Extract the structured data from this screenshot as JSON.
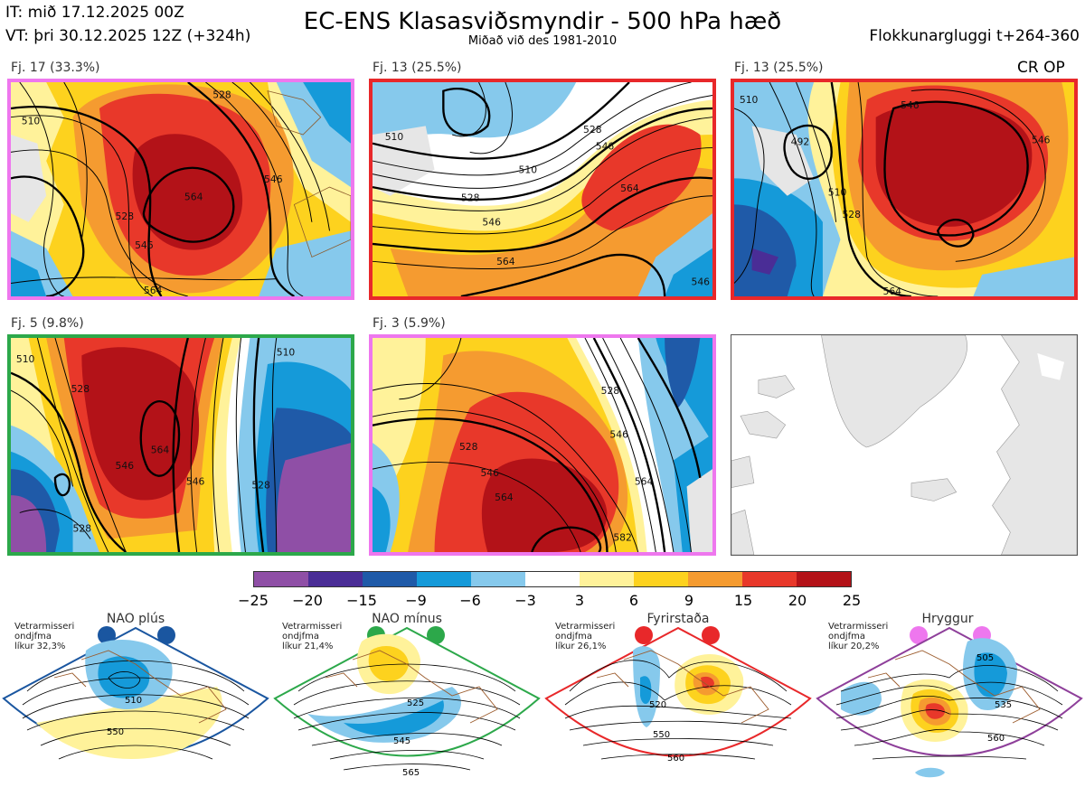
{
  "header": {
    "init_time": "IT: mið 17.12.2025 00Z",
    "valid_time": "VT: þri 30.12.2025 12Z  (+324h)",
    "title": "EC-ENS Klasasviðsmyndir - 500 hPa hæð",
    "subtitle": "Miðað við des 1981-2010",
    "window": "Flokkunargluggi t+264-360"
  },
  "panels": [
    {
      "label": "Fj. 17 (33.3%)",
      "frame_color": "#ee77ee"
    },
    {
      "label": "Fj. 13 (25.5%)",
      "frame_color": "#e8282a"
    },
    {
      "label": "Fj. 13 (25.5%)",
      "frame_color": "#e8282a",
      "tag": "CR OP"
    },
    {
      "label": "Fj. 5 (9.8%)",
      "frame_color": "#2ca84a"
    },
    {
      "label": "Fj. 3 (5.9%)",
      "frame_color": "#ee77ee"
    },
    {
      "label": "",
      "frame_color": "#555555"
    }
  ],
  "contour_labels": {
    "p1": [
      "510",
      "528",
      "546",
      "564",
      "564",
      "546",
      "528"
    ],
    "p2": [
      "510",
      "510",
      "528",
      "546",
      "564",
      "564",
      "546",
      "528",
      "546"
    ],
    "p3": [
      "492",
      "510",
      "528",
      "546",
      "546",
      "564",
      "510"
    ],
    "p4": [
      "510",
      "528",
      "546",
      "564",
      "546",
      "528",
      "510",
      "528"
    ],
    "p5": [
      "528",
      "546",
      "564",
      "582",
      "546",
      "564",
      "528"
    ]
  },
  "colorbar": {
    "ticks": [
      "−25",
      "−20",
      "−15",
      "−9",
      "−6",
      "−3",
      "3",
      "6",
      "9",
      "15",
      "20",
      "25"
    ],
    "colors": [
      "#8f4fa6",
      "#4a2d96",
      "#1f5aa8",
      "#159ad9",
      "#86c9ec",
      "#ffffff",
      "#fff29a",
      "#fdd21e",
      "#f59b30",
      "#e8382a",
      "#b31218"
    ]
  },
  "regimes": [
    {
      "name": "NAO plús",
      "note": [
        "Vetrarmisseri",
        "ondjfma",
        "líkur 32,3%"
      ],
      "color": "#1a56a0",
      "contours": [
        "510",
        "550"
      ]
    },
    {
      "name": "NAO mínus",
      "note": [
        "Vetrarmisseri",
        "ondjfma",
        "líkur 21,4%"
      ],
      "color": "#2ca84a",
      "contours": [
        "525",
        "545",
        "565"
      ]
    },
    {
      "name": "Fyrirstaða",
      "note": [
        "Vetrarmisseri",
        "ondjfma",
        "líkur 26,1%"
      ],
      "color": "#e8282a",
      "contours": [
        "520",
        "550",
        "560"
      ]
    },
    {
      "name": "Hryggur",
      "note": [
        "Vetrarmisseri",
        "ondjfma",
        "líkur 20,2%"
      ],
      "color": "#8e3f9a",
      "contours": [
        "505",
        "535",
        "560"
      ]
    }
  ]
}
